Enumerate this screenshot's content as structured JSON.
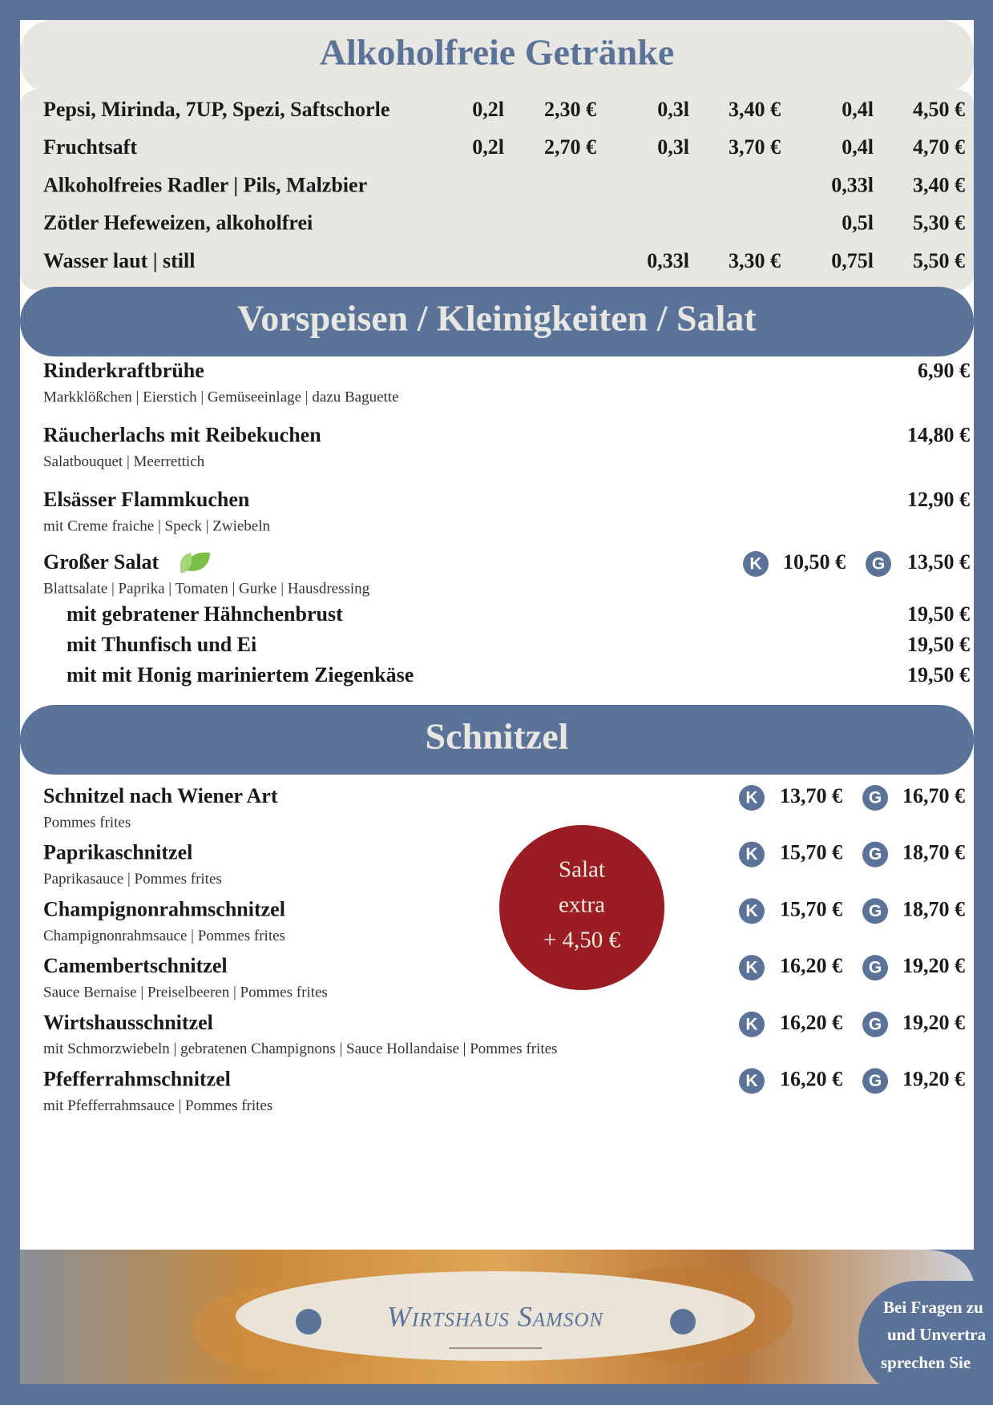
{
  "drinks": {
    "title": "Alkoholfreie Getränke",
    "items": [
      {
        "name": "Pepsi, Mirinda, 7UP, Spezi, Saftschorle",
        "prices": [
          {
            "size": "0,2l",
            "price": "2,30 €"
          },
          {
            "size": "0,3l",
            "price": "3,40 €"
          },
          {
            "size": "0,4l",
            "price": "4,50 €"
          }
        ]
      },
      {
        "name": "Fruchtsaft",
        "prices": [
          {
            "size": "0,2l",
            "price": "2,70 €"
          },
          {
            "size": "0,3l",
            "price": "3,70 €"
          },
          {
            "size": "0,4l",
            "price": "4,70 €"
          }
        ]
      },
      {
        "name": "Alkoholfreies Radler | Pils, Malzbier",
        "prices": [
          null,
          null,
          {
            "size": "0,33l",
            "price": "3,40 €"
          }
        ]
      },
      {
        "name": "Zötler Hefeweizen, alkoholfrei",
        "prices": [
          null,
          null,
          {
            "size": "0,5l",
            "price": "5,30 €"
          }
        ]
      },
      {
        "name": "Wasser laut | still",
        "prices": [
          null,
          {
            "size": "0,33l",
            "price": "3,30 €"
          },
          {
            "size": "0,75l",
            "price": "5,50 €"
          }
        ]
      }
    ]
  },
  "starters": {
    "title": "Vorspeisen / Kleinigkeiten / Salat",
    "items": [
      {
        "name": "Rinderkraftbrühe",
        "description": "Markklößchen | Eierstich | Gemüseeinlage | dazu Baguette",
        "price": "6,90 €"
      },
      {
        "name": "Räucherlachs mit Reibekuchen",
        "description": "Salatbouquet | Meerrettich",
        "price": "14,80 €"
      },
      {
        "name": "Elsässer Flammkuchen",
        "description": "mit Creme fraiche | Speck | Zwiebeln",
        "price": "12,90 €"
      }
    ],
    "salad": {
      "name": "Großer Salat",
      "description": "Blattsalate | Paprika | Tomaten | Gurke | Hausdressing",
      "prices": [
        {
          "badge": "K",
          "price": "10,50 €"
        },
        {
          "badge": "G",
          "price": "13,50 €"
        }
      ],
      "variants": [
        {
          "name": "mit gebratener Hähnchenbrust",
          "price": "19,50 €"
        },
        {
          "name": "mit Thunfisch und Ei",
          "price": "19,50 €"
        },
        {
          "name": "mit mit Honig mariniertem Ziegenkäse",
          "price": "19,50 €"
        }
      ]
    }
  },
  "schnitzel": {
    "title": "Schnitzel",
    "items": [
      {
        "name": "Schnitzel nach Wiener Art",
        "description": "Pommes frites",
        "prices": [
          {
            "badge": "K",
            "price": "13,70 €"
          },
          {
            "badge": "G",
            "price": "16,70 €"
          }
        ]
      },
      {
        "name": "Paprikaschnitzel",
        "description": "Paprikasauce | Pommes frites",
        "prices": [
          {
            "badge": "K",
            "price": "15,70 €"
          },
          {
            "badge": "G",
            "price": "18,70 €"
          }
        ]
      },
      {
        "name": "Champignonrahmschnitzel",
        "description": "Champignonrahmsauce | Pommes frites",
        "prices": [
          {
            "badge": "K",
            "price": "15,70 €"
          },
          {
            "badge": "G",
            "price": "18,70 €"
          }
        ]
      },
      {
        "name": "Camembertschnitzel",
        "description": "Sauce Bernaise | Preiselbeeren | Pommes frites",
        "prices": [
          {
            "badge": "K",
            "price": "16,20 €"
          },
          {
            "badge": "G",
            "price": "19,20 €"
          }
        ]
      },
      {
        "name": "Wirtshausschnitzel",
        "description": "mit Schmorzwiebeln | gebratenen Champignons | Sauce Hollandaise | Pommes frites",
        "prices": [
          {
            "badge": "K",
            "price": "16,20 €"
          },
          {
            "badge": "G",
            "price": "19,20 €"
          }
        ]
      },
      {
        "name": "Pfefferrahmschnitzel",
        "description": "mit Pfefferrahmsauce | Pommes frites",
        "prices": [
          {
            "badge": "K",
            "price": "16,20 €"
          },
          {
            "badge": "G",
            "price": "19,20 €"
          }
        ]
      }
    ],
    "extra": [
      "Salat",
      "extra",
      "+ 4,50 €"
    ]
  },
  "footer": {
    "logo": "Wirtshaus Samson",
    "note": [
      "Bei Fragen zu",
      "und Unvertra",
      "sprechen Sie"
    ]
  }
}
